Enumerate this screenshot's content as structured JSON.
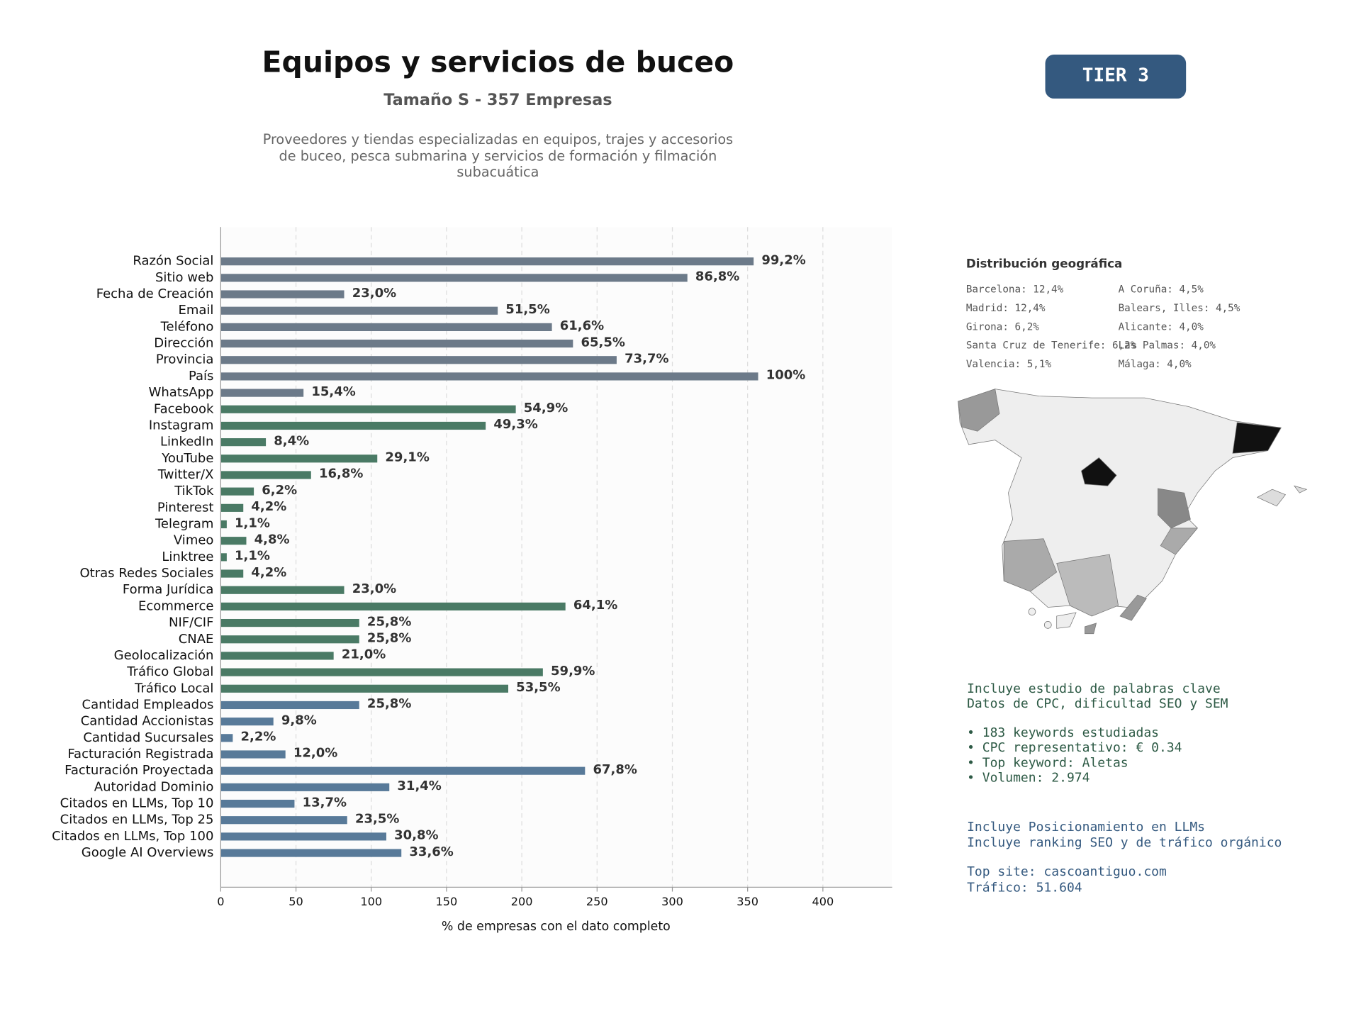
{
  "chart_data": {
    "type": "bar",
    "orientation": "horizontal",
    "title": "Equipos y servicios de buceo",
    "subtitle": "Tamaño S - 357 Empresas",
    "description": [
      "Proveedores y tiendas especializadas en equipos, trajes y accesorios",
      "de buceo, pesca submarina y servicios de formación y filmación",
      "subacuática"
    ],
    "xlabel": "% de empresas con el dato completo",
    "categories": [
      "Razón Social",
      "Sitio web",
      "Fecha de Creación",
      "Email",
      "Teléfono",
      "Dirección",
      "Provincia",
      "País",
      "WhatsApp",
      "Facebook",
      "Instagram",
      "LinkedIn",
      "YouTube",
      "Twitter/X",
      "TikTok",
      "Pinterest",
      "Telegram",
      "Vimeo",
      "Linktree",
      "Otras Redes Sociales",
      "Forma Jurídica",
      "Ecommerce",
      "NIF/CIF",
      "CNAE",
      "Geolocalización",
      "Tráfico Global",
      "Tráfico Local",
      "Cantidad Empleados",
      "Cantidad Accionistas",
      "Cantidad Sucursales",
      "Facturación Registrada",
      "Facturación Proyectada",
      "Autoridad Dominio",
      "Citados en LLMs, Top 10",
      "Citados en LLMs, Top 25",
      "Citados en LLMs, Top 100",
      "Google AI Overviews"
    ],
    "values": [
      354,
      310,
      82,
      184,
      220,
      234,
      263,
      357,
      55,
      196,
      176,
      30,
      104,
      60,
      22,
      15,
      4,
      17,
      4,
      15,
      82,
      229,
      92,
      92,
      75,
      214,
      191,
      92,
      35,
      8,
      43,
      242,
      112,
      49,
      84,
      110,
      120
    ],
    "value_labels": [
      "99,2%",
      "86,8%",
      "23,0%",
      "51,5%",
      "61,6%",
      "65,5%",
      "73,7%",
      "100%",
      "15,4%",
      "54,9%",
      "49,3%",
      "8,4%",
      "29,1%",
      "16,8%",
      "6,2%",
      "4,2%",
      "1,1%",
      "4,8%",
      "1,1%",
      "4,2%",
      "23,0%",
      "64,1%",
      "25,8%",
      "25,8%",
      "21,0%",
      "59,9%",
      "53,5%",
      "25,8%",
      "9,8%",
      "2,2%",
      "12,0%",
      "67,8%",
      "31,4%",
      "13,7%",
      "23,5%",
      "30,8%",
      "33,6%"
    ],
    "colors": [
      "#6c7a89",
      "#6c7a89",
      "#6c7a89",
      "#6c7a89",
      "#6c7a89",
      "#6c7a89",
      "#6c7a89",
      "#6c7a89",
      "#6c7a89",
      "#4a7a65",
      "#4a7a65",
      "#4a7a65",
      "#4a7a65",
      "#4a7a65",
      "#4a7a65",
      "#4a7a65",
      "#4a7a65",
      "#4a7a65",
      "#4a7a65",
      "#4a7a65",
      "#4a7a65",
      "#4a7a65",
      "#4a7a65",
      "#4a7a65",
      "#4a7a65",
      "#4a7a65",
      "#4a7a65",
      "#587a99",
      "#587a99",
      "#587a99",
      "#587a99",
      "#587a99",
      "#587a99",
      "#587a99",
      "#587a99",
      "#587a99",
      "#587a99"
    ],
    "xlim": [
      0,
      446
    ],
    "xticks": [
      0,
      50,
      100,
      150,
      200,
      250,
      300,
      350,
      400
    ],
    "grid": true
  },
  "badge": "TIER 3",
  "geo": {
    "title": "Distribución geográfica",
    "items": [
      "Barcelona: 12,4%",
      "Madrid: 12,4%",
      "Girona: 6,2%",
      "Santa Cruz de Tenerife: 6,2%",
      "Valencia: 5,1%",
      "A Coruña: 4,5%",
      "Balears, Illes: 4,5%",
      "Alicante: 4,0%",
      "Las Palmas: 4,0%",
      "Málaga: 4,0%"
    ]
  },
  "keywords": {
    "lines": [
      "Incluye estudio de palabras clave",
      "Datos de CPC, dificultad SEO y SEM"
    ],
    "bullets": [
      "• 183 keywords estudiadas",
      "• CPC representativo: € 0.34",
      "• Top keyword: Aletas",
      "• Volumen: 2.974"
    ]
  },
  "llm": {
    "lines": [
      "Incluye Posicionamiento en LLMs",
      "Incluye ranking SEO y de tráfico orgánico"
    ],
    "site": [
      "Top site: cascoantiguo.com",
      "Tráfico: 51.604"
    ]
  }
}
